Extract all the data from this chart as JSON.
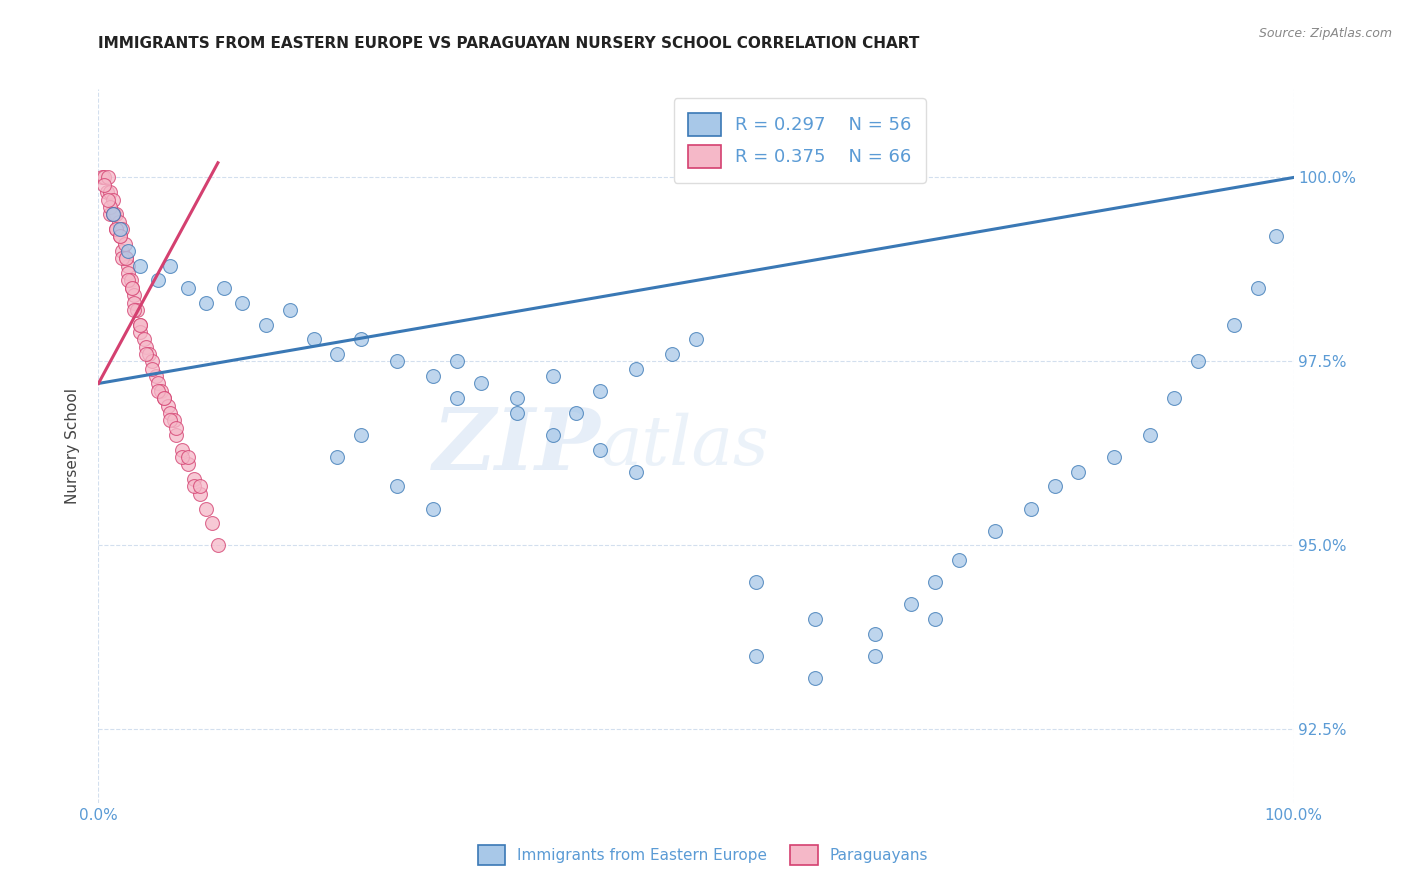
{
  "title": "IMMIGRANTS FROM EASTERN EUROPE VS PARAGUAYAN NURSERY SCHOOL CORRELATION CHART",
  "source": "Source: ZipAtlas.com",
  "ylabel": "Nursery School",
  "xlim": [
    0.0,
    100.0
  ],
  "ylim": [
    91.5,
    101.2
  ],
  "yticks": [
    92.5,
    95.0,
    97.5,
    100.0
  ],
  "ytick_labels": [
    "92.5%",
    "95.0%",
    "97.5%",
    "100.0%"
  ],
  "xtick_labels": [
    "0.0%",
    "100.0%"
  ],
  "blue_label": "Immigrants from Eastern Europe",
  "pink_label": "Paraguayans",
  "blue_R": "R = 0.297",
  "blue_N": "N = 56",
  "pink_R": "R = 0.375",
  "pink_N": "N = 66",
  "blue_color": "#a8c8e8",
  "pink_color": "#f5b8c8",
  "trend_blue_color": "#3a78b5",
  "trend_pink_color": "#d44070",
  "tick_color": "#5b9bd5",
  "blue_scatter_x": [
    1.2,
    1.8,
    2.5,
    3.5,
    5.0,
    6.0,
    7.5,
    9.0,
    10.5,
    12.0,
    14.0,
    16.0,
    18.0,
    20.0,
    22.0,
    25.0,
    28.0,
    30.0,
    32.0,
    35.0,
    38.0,
    40.0,
    42.0,
    45.0,
    48.0,
    50.0,
    30.0,
    35.0,
    38.0,
    42.0,
    45.0,
    20.0,
    22.0,
    25.0,
    28.0,
    55.0,
    60.0,
    65.0,
    68.0,
    70.0,
    72.0,
    75.0,
    78.0,
    80.0,
    82.0,
    85.0,
    88.0,
    90.0,
    92.0,
    95.0,
    97.0,
    98.5,
    55.0,
    60.0,
    65.0,
    70.0
  ],
  "blue_scatter_y": [
    99.5,
    99.3,
    99.0,
    98.8,
    98.6,
    98.8,
    98.5,
    98.3,
    98.5,
    98.3,
    98.0,
    98.2,
    97.8,
    97.6,
    97.8,
    97.5,
    97.3,
    97.5,
    97.2,
    97.0,
    97.3,
    96.8,
    97.1,
    97.4,
    97.6,
    97.8,
    97.0,
    96.8,
    96.5,
    96.3,
    96.0,
    96.2,
    96.5,
    95.8,
    95.5,
    93.5,
    93.2,
    93.8,
    94.2,
    94.5,
    94.8,
    95.2,
    95.5,
    95.8,
    96.0,
    96.2,
    96.5,
    97.0,
    97.5,
    98.0,
    98.5,
    99.2,
    94.5,
    94.0,
    93.5,
    94.0
  ],
  "pink_scatter_x": [
    0.3,
    0.5,
    0.7,
    0.8,
    1.0,
    1.0,
    1.2,
    1.3,
    1.5,
    1.5,
    1.7,
    1.8,
    2.0,
    2.0,
    2.2,
    2.3,
    2.5,
    2.5,
    2.7,
    2.8,
    3.0,
    3.0,
    3.2,
    3.5,
    3.5,
    3.8,
    4.0,
    4.2,
    4.5,
    4.8,
    5.0,
    5.2,
    5.5,
    5.8,
    6.0,
    6.3,
    6.5,
    7.0,
    7.5,
    8.0,
    8.5,
    9.0,
    1.0,
    1.5,
    2.0,
    2.5,
    3.0,
    0.5,
    0.8,
    1.2,
    1.8,
    2.3,
    2.8,
    3.5,
    4.0,
    5.0,
    6.0,
    7.0,
    8.0,
    9.5,
    10.0,
    4.5,
    5.5,
    6.5,
    7.5,
    8.5
  ],
  "pink_scatter_y": [
    100.0,
    100.0,
    99.8,
    100.0,
    99.8,
    99.5,
    99.7,
    99.5,
    99.5,
    99.3,
    99.4,
    99.2,
    99.3,
    99.0,
    99.1,
    98.9,
    98.8,
    98.7,
    98.6,
    98.5,
    98.4,
    98.3,
    98.2,
    98.0,
    97.9,
    97.8,
    97.7,
    97.6,
    97.5,
    97.3,
    97.2,
    97.1,
    97.0,
    96.9,
    96.8,
    96.7,
    96.5,
    96.3,
    96.1,
    95.9,
    95.7,
    95.5,
    99.6,
    99.3,
    98.9,
    98.6,
    98.2,
    99.9,
    99.7,
    99.5,
    99.2,
    98.9,
    98.5,
    98.0,
    97.6,
    97.1,
    96.7,
    96.2,
    95.8,
    95.3,
    95.0,
    97.4,
    97.0,
    96.6,
    96.2,
    95.8
  ],
  "blue_trend_x": [
    0.0,
    100.0
  ],
  "blue_trend_y": [
    97.2,
    100.0
  ],
  "pink_trend_x": [
    0.0,
    10.0
  ],
  "pink_trend_y": [
    97.2,
    100.2
  ],
  "watermark_zip": "ZIP",
  "watermark_atlas": "atlas",
  "legend_fontsize": 13,
  "title_fontsize": 11,
  "background_color": "#ffffff"
}
